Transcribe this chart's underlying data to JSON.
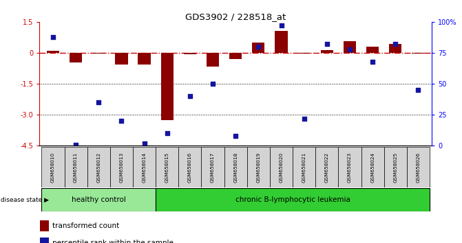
{
  "title": "GDS3902 / 228518_at",
  "samples": [
    "GSM658010",
    "GSM658011",
    "GSM658012",
    "GSM658013",
    "GSM658014",
    "GSM658015",
    "GSM658016",
    "GSM658017",
    "GSM658018",
    "GSM658019",
    "GSM658020",
    "GSM658021",
    "GSM658022",
    "GSM658023",
    "GSM658024",
    "GSM658025",
    "GSM658026"
  ],
  "bar_values": [
    0.1,
    -0.45,
    -0.05,
    -0.55,
    -0.55,
    -3.25,
    -0.08,
    -0.65,
    -0.3,
    0.5,
    1.05,
    -0.02,
    0.12,
    0.55,
    0.3,
    0.42,
    -0.02
  ],
  "dot_values": [
    88,
    1,
    35,
    20,
    2,
    10,
    40,
    50,
    8,
    80,
    97,
    22,
    82,
    78,
    68,
    82,
    45
  ],
  "ylim_left": [
    -4.5,
    1.5
  ],
  "ylim_right": [
    0,
    100
  ],
  "yticks_left": [
    1.5,
    0.0,
    -1.5,
    -3.0,
    -4.5
  ],
  "yticks_right": [
    100,
    75,
    50,
    25,
    0
  ],
  "bar_color": "#8B0000",
  "dot_color": "#1414A0",
  "healthy_color": "#98E898",
  "leukemia_color": "#32CD32",
  "healthy_label": "healthy control",
  "leukemia_label": "chronic B-lymphocytic leukemia",
  "disease_state_label": "disease state",
  "legend_bar": "transformed count",
  "legend_dot": "percentile rank within the sample",
  "n_healthy": 5,
  "n_total": 17,
  "hline_zero_color": "#CC0000",
  "hline_dotted_color": "#000000"
}
